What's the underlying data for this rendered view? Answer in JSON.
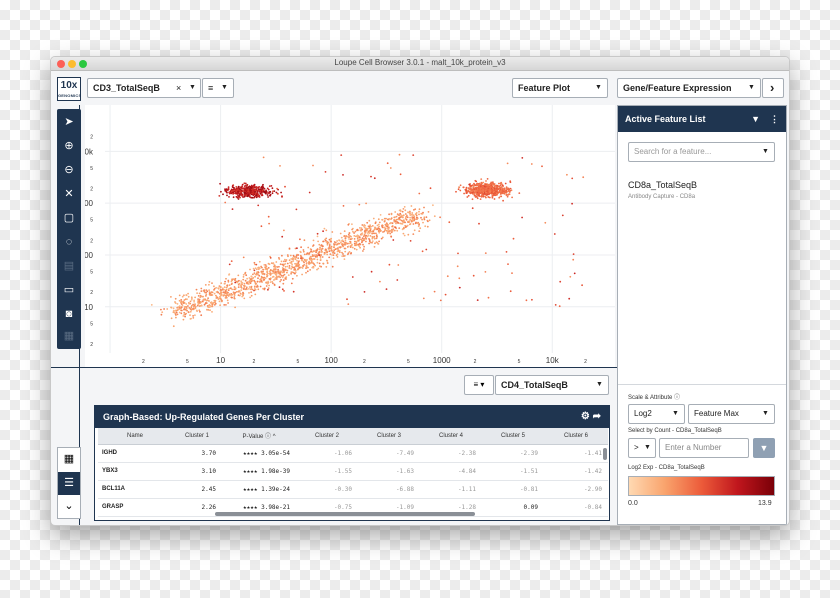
{
  "window": {
    "title": "Loupe Cell Browser 3.0.1 - malt_10k_protein_v3"
  },
  "logo": {
    "line1": "10x",
    "line2": "GENOMICS"
  },
  "header": {
    "x_feature": "CD3_TotalSeqB",
    "clear_symbol": "×",
    "filter_icon": "≡",
    "view_select": "Feature Plot",
    "mode_select": "Gene/Feature Expression",
    "next_symbol": "›"
  },
  "toolbar": {
    "icons": [
      "pointer-icon",
      "zoom-in-icon",
      "zoom-out-icon",
      "fit-icon",
      "rect-select-icon",
      "lasso-icon",
      "save-icon",
      "folder-icon",
      "camera-icon",
      "grid-icon"
    ]
  },
  "plot": {
    "y_feature": "CD4_TotalSeqB",
    "y_ticks": [
      "2",
      "10k",
      "5",
      "2",
      "1000",
      "5",
      "2",
      "100",
      "5",
      "2",
      "10",
      "5",
      "2"
    ],
    "x_ticks": [
      "2",
      "5",
      "10",
      "2",
      "5",
      "100",
      "2",
      "5",
      "1000",
      "2",
      "5",
      "10k",
      "2"
    ]
  },
  "chart_data": {
    "type": "scatter",
    "title": "",
    "xlabel": "CD3_TotalSeqB",
    "ylabel": "CD4_TotalSeqB",
    "x_scale": "log",
    "y_scale": "log",
    "color_scale": {
      "label": "Log2 Exp - CD8a_TotalSeqB",
      "min": 0.0,
      "max": 13.9,
      "low_color": "#ffd9b2",
      "high_color": "#7a0008"
    },
    "clusters": [
      {
        "x_center": 18,
        "y_center": 1700,
        "color_level": 0.9
      },
      {
        "x_center": 2600,
        "y_center": 1800,
        "color_level": 0.45
      },
      {
        "x_center": 60,
        "y_center": 20,
        "color_level": 0.25
      }
    ]
  },
  "table": {
    "title": "Graph-Based: Up-Regulated Genes Per Cluster",
    "columns": [
      "Name",
      "Cluster 1",
      "P-Value",
      "Cluster 2",
      "Cluster 3",
      "Cluster 4",
      "Cluster 5",
      "Cluster 6"
    ],
    "rows": [
      [
        "IGHD",
        "3.70",
        "★★★★ 3.05e-54",
        "-1.06",
        "-7.49",
        "-2.38",
        "-2.39",
        "-1.41"
      ],
      [
        "YBX3",
        "3.10",
        "★★★★ 1.98e-39",
        "-1.55",
        "-1.63",
        "-4.84",
        "-1.51",
        "-1.42"
      ],
      [
        "BCL11A",
        "2.45",
        "★★★★ 1.39e-24",
        "-0.30",
        "-6.88",
        "-1.11",
        "-0.81",
        "-2.90"
      ],
      [
        "GRASP",
        "2.26",
        "★★★★ 3.98e-21",
        "-0.75",
        "-1.09",
        "-1.28",
        "0.09",
        "-0.84"
      ]
    ]
  },
  "side": {
    "header": "Active Feature List",
    "search_placeholder": "Search for a feature...",
    "feature_name": "CD8a_TotalSeqB",
    "feature_sub": "Antibody Capture - CD8a",
    "scale_label": "Scale & Attribute",
    "scale_value": "Log2",
    "attr_value": "Feature Max",
    "count_label": "Select by Count - CD8a_TotalSeqB",
    "op_value": ">",
    "number_placeholder": "Enter a Number",
    "gradient_label": "Log2 Exp - CD8a_TotalSeqB",
    "grad_min": "0.0",
    "grad_max": "13.9"
  }
}
